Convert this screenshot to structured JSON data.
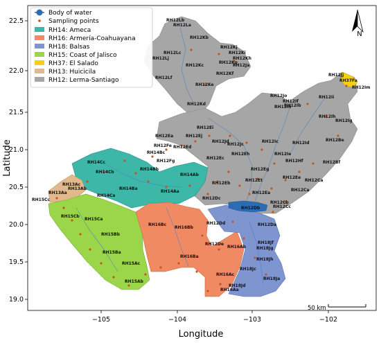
{
  "axes": {
    "xlabel": "Longitude",
    "ylabel": "Latitude",
    "xticks": [
      "−105",
      "−104",
      "−103",
      "−102"
    ],
    "yticks": [
      "22.5",
      "22.0",
      "21.5",
      "21.0",
      "20.5",
      "20.0",
      "19.5",
      "19.0"
    ]
  },
  "legend": {
    "water": "Body of water",
    "points": "Sampling points",
    "regions": [
      {
        "label": "RH14: Ameca",
        "color": "#3cb7a8"
      },
      {
        "label": "RH16: Armería-Coahuayana",
        "color": "#f08a62"
      },
      {
        "label": "RH18: Balsas",
        "color": "#7f95d0"
      },
      {
        "label": "RH15: Coast of Jalisco",
        "color": "#9bd64a"
      },
      {
        "label": "RH37: El Salado",
        "color": "#f4cf1a"
      },
      {
        "label": "RH13: Huicicila",
        "color": "#e2b98c"
      },
      {
        "label": "RH12: Lerma-Santiago",
        "color": "#a6a6a6"
      }
    ]
  },
  "colors": {
    "water": "#2a6db5",
    "points": "#c8551e",
    "rivers": "#4c7fc3"
  },
  "north_arrow": "N",
  "scale_bar": "50 km",
  "basin_labels": [
    "RH12Lb",
    "RH12La",
    "RH12Kb",
    "RH12Lc",
    "RH12Kj",
    "RH12Ki",
    "RH12Lj",
    "RH12Kh",
    "RH12Kc",
    "RH12Kg",
    "RH12Ja",
    "RH12Lf",
    "RH12Kf",
    "RH12Ke",
    "RH12Jj",
    "RH37Fa",
    "RH12Im",
    "RH12Jo",
    "RH12If",
    "RH12Kd",
    "RH12Ib",
    "RH12Ii",
    "RH12In",
    "RH12Ih",
    "RH12Ig",
    "RH12Ei",
    "RH12Ea",
    "RH12Ej",
    "RH12Jd",
    "RH12Fe",
    "RH12Ed",
    "RH12Jc",
    "RH12Ic",
    "RH12Id",
    "RH12Be",
    "RH14Bc",
    "RH12Eh",
    "RH12Ie",
    "RH12Fg",
    "RH12Ec",
    "RH12Hf",
    "RH12Bf",
    "RH14Cc",
    "RH14Bb",
    "RH12Eg",
    "RH12Ee",
    "RH12Ca",
    "RH14Cb",
    "RH14Ab",
    "RH12Et",
    "RH12Ca",
    "RH13Ac",
    "RH13Ab",
    "RH14Ba",
    "RH14Ca",
    "RH13Aa",
    "RH12Eb",
    "RH12Ea",
    "RH14Aa",
    "RH15Cc",
    "RH12Dc",
    "RH12Cb",
    "RH12Cc",
    "RH12Db",
    "RH15Cb",
    "RH15Ca",
    "RH16Bc",
    "RH16Bb",
    "RH12Dd",
    "RH12Da",
    "RH15Bb",
    "RH18Jf",
    "RH12De",
    "RH16Ab",
    "RH18Jg",
    "RH15Ba",
    "RH16Ba",
    "RH18Jh",
    "RH15Ac",
    "RH18Jc",
    "RH15Ab",
    "RH16Ac",
    "RH18Ja",
    "RH16Aa",
    "RH18Jd"
  ]
}
